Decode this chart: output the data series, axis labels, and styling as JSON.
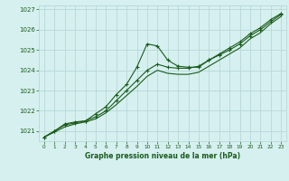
{
  "title": "Graphe pression niveau de la mer (hPa)",
  "bg_color": "#d6f0f0",
  "grid_color": "#b8d8d8",
  "line_color": "#1a5c1a",
  "xlim": [
    -0.5,
    23.5
  ],
  "ylim": [
    1020.5,
    1027.2
  ],
  "xticks": [
    0,
    1,
    2,
    3,
    4,
    5,
    6,
    7,
    8,
    9,
    10,
    11,
    12,
    13,
    14,
    15,
    16,
    17,
    18,
    19,
    20,
    21,
    22,
    23
  ],
  "yticks": [
    1021,
    1022,
    1023,
    1024,
    1025,
    1026,
    1027
  ],
  "series1_x": [
    0,
    1,
    2,
    3,
    4,
    5,
    6,
    7,
    8,
    9,
    10,
    11,
    12,
    13,
    14,
    15,
    16,
    17,
    18,
    19,
    20,
    21,
    22,
    23
  ],
  "series1_y": [
    1020.7,
    1021.0,
    1021.35,
    1021.45,
    1021.5,
    1021.85,
    1022.2,
    1022.8,
    1023.3,
    1024.15,
    1025.3,
    1025.2,
    1024.5,
    1024.2,
    1024.15,
    1024.15,
    1024.5,
    1024.8,
    1025.1,
    1025.4,
    1025.8,
    1026.1,
    1026.5,
    1026.8
  ],
  "series2_x": [
    0,
    1,
    2,
    3,
    4,
    5,
    6,
    7,
    8,
    9,
    10,
    11,
    12,
    13,
    14,
    15,
    16,
    17,
    18,
    19,
    20,
    21,
    22,
    23
  ],
  "series2_y": [
    1020.7,
    1021.0,
    1021.3,
    1021.4,
    1021.5,
    1021.7,
    1022.0,
    1022.5,
    1023.0,
    1023.5,
    1024.0,
    1024.3,
    1024.15,
    1024.1,
    1024.1,
    1024.2,
    1024.5,
    1024.75,
    1025.0,
    1025.3,
    1025.7,
    1026.0,
    1026.4,
    1026.75
  ],
  "series3_x": [
    0,
    1,
    2,
    3,
    4,
    5,
    6,
    7,
    8,
    9,
    10,
    11,
    12,
    13,
    14,
    15,
    16,
    17,
    18,
    19,
    20,
    21,
    22,
    23
  ],
  "series3_y": [
    1020.7,
    1020.95,
    1021.2,
    1021.35,
    1021.45,
    1021.6,
    1021.9,
    1022.3,
    1022.75,
    1023.2,
    1023.7,
    1024.0,
    1023.85,
    1023.8,
    1023.8,
    1023.9,
    1024.2,
    1024.5,
    1024.8,
    1025.1,
    1025.55,
    1025.85,
    1026.3,
    1026.65
  ]
}
